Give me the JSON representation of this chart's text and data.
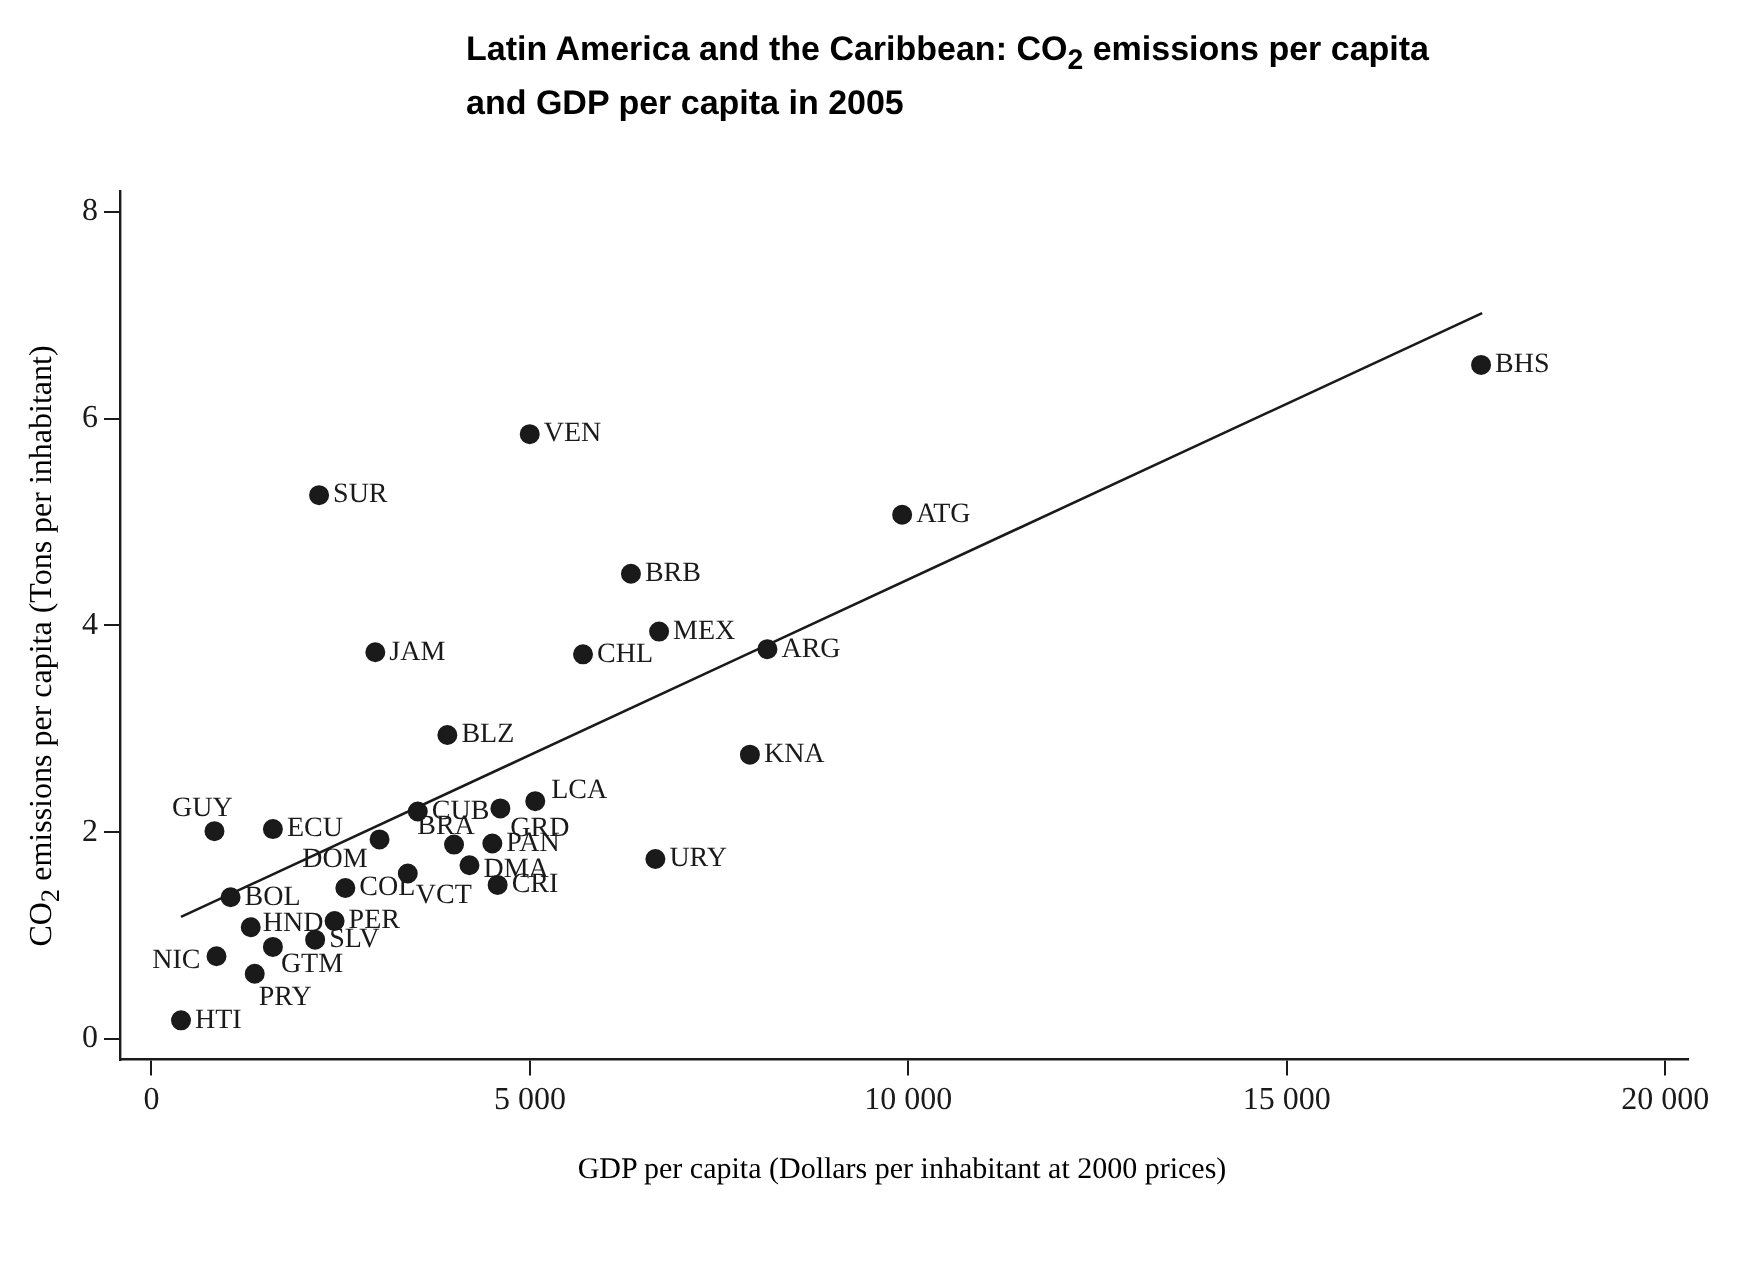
{
  "chart_data": {
    "type": "scatter",
    "title": "Latin America and the Caribbean: CO$_{2}$ emissions per capita and GDP per capita in 2005",
    "xlabel": "GDP per capita (Dollars per inhabitant at 2000 prices)",
    "ylabel": "CO$_{2}$ emissions per capita (Tons per inhabitant)",
    "series": [
      {
        "type": "scatter",
        "color": "#1a1a1a",
        "marker": "circle",
        "x": [
          391,
          860,
          1365,
          833,
          1605,
          1046,
          1312,
          1605,
          2163,
          2420,
          2562,
          3014,
          3387,
          3519,
          3998,
          4202,
          4610,
          4504,
          4574,
          5071,
          6658,
          7907,
          8138,
          6707,
          5702,
          2958,
          3910,
          6335,
          9918,
          2215,
          4998,
          17566
        ],
        "values": [
          0.18,
          0.8,
          0.63,
          2.01,
          2.03,
          1.37,
          1.08,
          0.89,
          0.96,
          1.14,
          1.46,
          1.93,
          1.6,
          2.2,
          1.88,
          1.68,
          2.23,
          1.89,
          1.49,
          2.3,
          1.74,
          2.75,
          3.77,
          3.94,
          3.72,
          3.74,
          2.94,
          4.5,
          5.07,
          5.26,
          5.85,
          6.52
        ]
      },
      {
        "type": "line",
        "color": "#1a1a1a",
        "marker": "none",
        "line_style": "solid",
        "x": [
          391,
          17580
        ],
        "values": [
          1.18,
          7.02
        ]
      }
    ],
    "annotations": [
      {
        "text": "HTI",
        "x": 391,
        "y": 0.18
      },
      {
        "text": "NIC",
        "x": 860,
        "y": 0.8
      },
      {
        "text": "PRY",
        "x": 1365,
        "y": 0.63
      },
      {
        "text": "GUY",
        "x": 833,
        "y": 2.01
      },
      {
        "text": "ECU",
        "x": 1605,
        "y": 2.03
      },
      {
        "text": "BOL",
        "x": 1046,
        "y": 1.37
      },
      {
        "text": "HND",
        "x": 1312,
        "y": 1.08
      },
      {
        "text": "GTM",
        "x": 1605,
        "y": 0.89
      },
      {
        "text": "SLV",
        "x": 2163,
        "y": 0.96
      },
      {
        "text": "PER",
        "x": 2420,
        "y": 1.14
      },
      {
        "text": "COL",
        "x": 2562,
        "y": 1.46
      },
      {
        "text": "DOM",
        "x": 3014,
        "y": 1.93
      },
      {
        "text": "VCT",
        "x": 3387,
        "y": 1.6
      },
      {
        "text": "CUB",
        "x": 3519,
        "y": 2.2
      },
      {
        "text": "BRA",
        "x": 3998,
        "y": 1.88
      },
      {
        "text": "DMA",
        "x": 4202,
        "y": 1.68
      },
      {
        "text": "GRD",
        "x": 4610,
        "y": 2.23
      },
      {
        "text": "PAN",
        "x": 4504,
        "y": 1.89
      },
      {
        "text": "CRI",
        "x": 4574,
        "y": 1.49
      },
      {
        "text": "LCA",
        "x": 5071,
        "y": 2.3
      },
      {
        "text": "URY",
        "x": 6658,
        "y": 1.74
      },
      {
        "text": "KNA",
        "x": 7907,
        "y": 2.75
      },
      {
        "text": "ARG",
        "x": 8138,
        "y": 3.77
      },
      {
        "text": "MEX",
        "x": 6707,
        "y": 3.94
      },
      {
        "text": "CHL",
        "x": 5702,
        "y": 3.72
      },
      {
        "text": "JAM",
        "x": 2958,
        "y": 3.74
      },
      {
        "text": "BLZ",
        "x": 3910,
        "y": 2.94
      },
      {
        "text": "BRB",
        "x": 6335,
        "y": 4.5
      },
      {
        "text": "ATG",
        "x": 9918,
        "y": 5.07
      },
      {
        "text": "SUR",
        "x": 2215,
        "y": 5.26
      },
      {
        "text": "VEN",
        "x": 4998,
        "y": 5.85
      },
      {
        "text": "BHS",
        "x": 17566,
        "y": 6.52
      }
    ],
    "xlim": [
      -415,
      20300
    ],
    "xticks": [
      0,
      {
        "value": 5000,
        "label": "5 000"
      },
      {
        "value": 10000,
        "label": "10 000"
      },
      {
        "value": 15000,
        "label": "15 000"
      },
      {
        "value": 20000,
        "label": "20 000"
      }
    ],
    "ylim": [
      -0.2,
      8.2
    ],
    "yticks": [
      0,
      2,
      4,
      6,
      8
    ],
    "grid": false,
    "legend": false
  }
}
